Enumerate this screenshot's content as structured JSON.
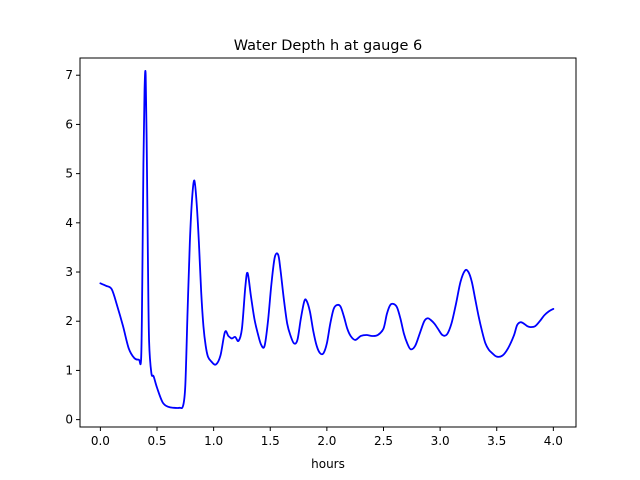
{
  "chart_data": {
    "type": "line",
    "title": "Water Depth h at gauge 6",
    "xlabel": "hours",
    "ylabel": "",
    "xlim": [
      -0.18,
      4.2
    ],
    "ylim": [
      -0.15,
      7.35
    ],
    "x_ticks": [
      0.0,
      0.5,
      1.0,
      1.5,
      2.0,
      2.5,
      3.0,
      3.5,
      4.0
    ],
    "x_tick_labels": [
      "0.0",
      "0.5",
      "1.0",
      "1.5",
      "2.0",
      "2.5",
      "3.0",
      "3.5",
      "4.0"
    ],
    "y_ticks": [
      0,
      1,
      2,
      3,
      4,
      5,
      6,
      7
    ],
    "y_tick_labels": [
      "0",
      "1",
      "2",
      "3",
      "4",
      "5",
      "6",
      "7"
    ],
    "grid": false,
    "series": [
      {
        "color": "#0000ff",
        "x": [
          0.0,
          0.05,
          0.1,
          0.15,
          0.2,
          0.25,
          0.3,
          0.34,
          0.36,
          0.37,
          0.38,
          0.39,
          0.4,
          0.41,
          0.42,
          0.43,
          0.45,
          0.47,
          0.5,
          0.55,
          0.6,
          0.65,
          0.7,
          0.73,
          0.75,
          0.77,
          0.79,
          0.81,
          0.83,
          0.85,
          0.87,
          0.89,
          0.91,
          0.93,
          0.95,
          0.98,
          1.02,
          1.06,
          1.1,
          1.13,
          1.16,
          1.19,
          1.22,
          1.25,
          1.28,
          1.3,
          1.33,
          1.36,
          1.39,
          1.42,
          1.45,
          1.48,
          1.51,
          1.54,
          1.57,
          1.59,
          1.62,
          1.65,
          1.68,
          1.71,
          1.74,
          1.77,
          1.8,
          1.82,
          1.85,
          1.88,
          1.91,
          1.94,
          1.97,
          2.0,
          2.03,
          2.06,
          2.09,
          2.12,
          2.15,
          2.18,
          2.21,
          2.25,
          2.3,
          2.35,
          2.4,
          2.45,
          2.5,
          2.53,
          2.56,
          2.59,
          2.62,
          2.65,
          2.68,
          2.71,
          2.74,
          2.78,
          2.82,
          2.86,
          2.89,
          2.92,
          2.95,
          2.98,
          3.02,
          3.06,
          3.1,
          3.14,
          3.18,
          3.22,
          3.25,
          3.28,
          3.31,
          3.34,
          3.37,
          3.4,
          3.43,
          3.46,
          3.5,
          3.55,
          3.6,
          3.65,
          3.68,
          3.71,
          3.74,
          3.77,
          3.8,
          3.84,
          3.88,
          3.92,
          3.96,
          4.0
        ],
        "values": [
          2.77,
          2.72,
          2.65,
          2.3,
          1.9,
          1.45,
          1.25,
          1.22,
          1.25,
          2.8,
          5.2,
          6.7,
          7.0,
          5.4,
          3.2,
          1.6,
          0.95,
          0.88,
          0.65,
          0.35,
          0.26,
          0.24,
          0.24,
          0.28,
          0.7,
          2.2,
          3.6,
          4.5,
          4.86,
          4.4,
          3.6,
          2.6,
          1.9,
          1.5,
          1.28,
          1.18,
          1.12,
          1.3,
          1.78,
          1.7,
          1.65,
          1.68,
          1.6,
          1.85,
          2.7,
          2.98,
          2.5,
          2.05,
          1.75,
          1.52,
          1.5,
          2.0,
          2.75,
          3.3,
          3.35,
          3.05,
          2.45,
          1.95,
          1.7,
          1.55,
          1.62,
          2.05,
          2.4,
          2.42,
          2.2,
          1.8,
          1.5,
          1.35,
          1.35,
          1.55,
          1.95,
          2.25,
          2.33,
          2.3,
          2.1,
          1.85,
          1.7,
          1.62,
          1.7,
          1.72,
          1.7,
          1.72,
          1.85,
          2.15,
          2.33,
          2.35,
          2.28,
          2.05,
          1.75,
          1.55,
          1.43,
          1.5,
          1.75,
          2.0,
          2.06,
          2.02,
          1.95,
          1.85,
          1.72,
          1.73,
          1.95,
          2.35,
          2.8,
          3.03,
          3.0,
          2.8,
          2.45,
          2.1,
          1.8,
          1.55,
          1.42,
          1.35,
          1.28,
          1.3,
          1.45,
          1.7,
          1.92,
          1.98,
          1.95,
          1.9,
          1.88,
          1.9,
          2.0,
          2.12,
          2.2,
          2.25
        ]
      }
    ]
  }
}
